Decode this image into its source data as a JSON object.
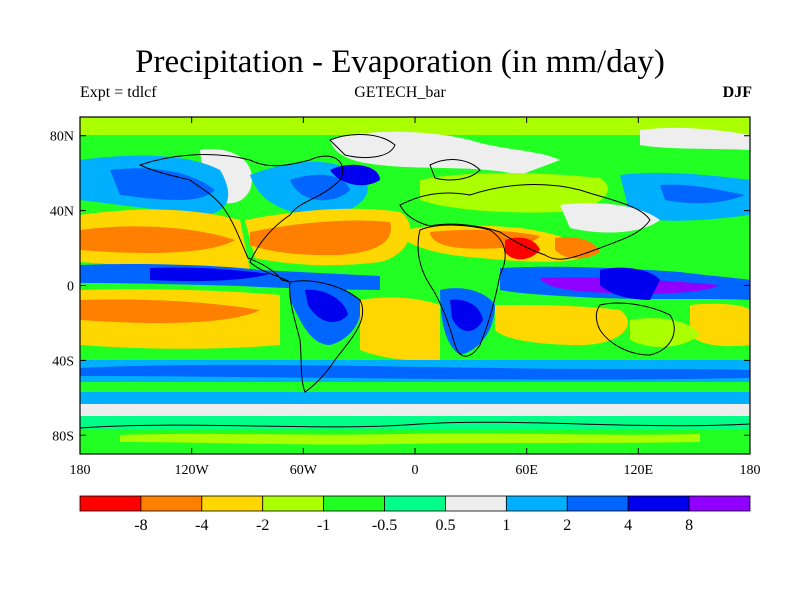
{
  "header": {
    "title": "Precipitation - Evaporation (in mm/day)",
    "left_label": "Expt = tdlcf",
    "center_label": "GETECH_bar",
    "right_label": "DJF"
  },
  "map": {
    "lat_ticks": [
      {
        "label": "80N",
        "value": 80
      },
      {
        "label": "40N",
        "value": 40
      },
      {
        "label": "0",
        "value": 0
      },
      {
        "label": "40S",
        "value": -40
      },
      {
        "label": "80S",
        "value": -80
      }
    ],
    "lon_ticks": [
      {
        "label": "180",
        "value": -180
      },
      {
        "label": "120W",
        "value": -120
      },
      {
        "label": "60W",
        "value": -60
      },
      {
        "label": "0",
        "value": 0
      },
      {
        "label": "60E",
        "value": 60
      },
      {
        "label": "120E",
        "value": 120
      },
      {
        "label": "180",
        "value": 180
      }
    ],
    "lat_range": [
      -90,
      90
    ],
    "lon_range": [
      -180,
      180
    ]
  },
  "colorbar": {
    "colors": [
      "#ff0000",
      "#ff8000",
      "#ffd700",
      "#aaff00",
      "#22ff22",
      "#00ff88",
      "#eeeeee",
      "#00b0ff",
      "#0066ff",
      "#0000ee",
      "#9000ff"
    ],
    "labels": [
      "-8",
      "-4",
      "-2",
      "-1",
      "-0.5",
      "0.5",
      "1",
      "2",
      "4",
      "8"
    ]
  }
}
